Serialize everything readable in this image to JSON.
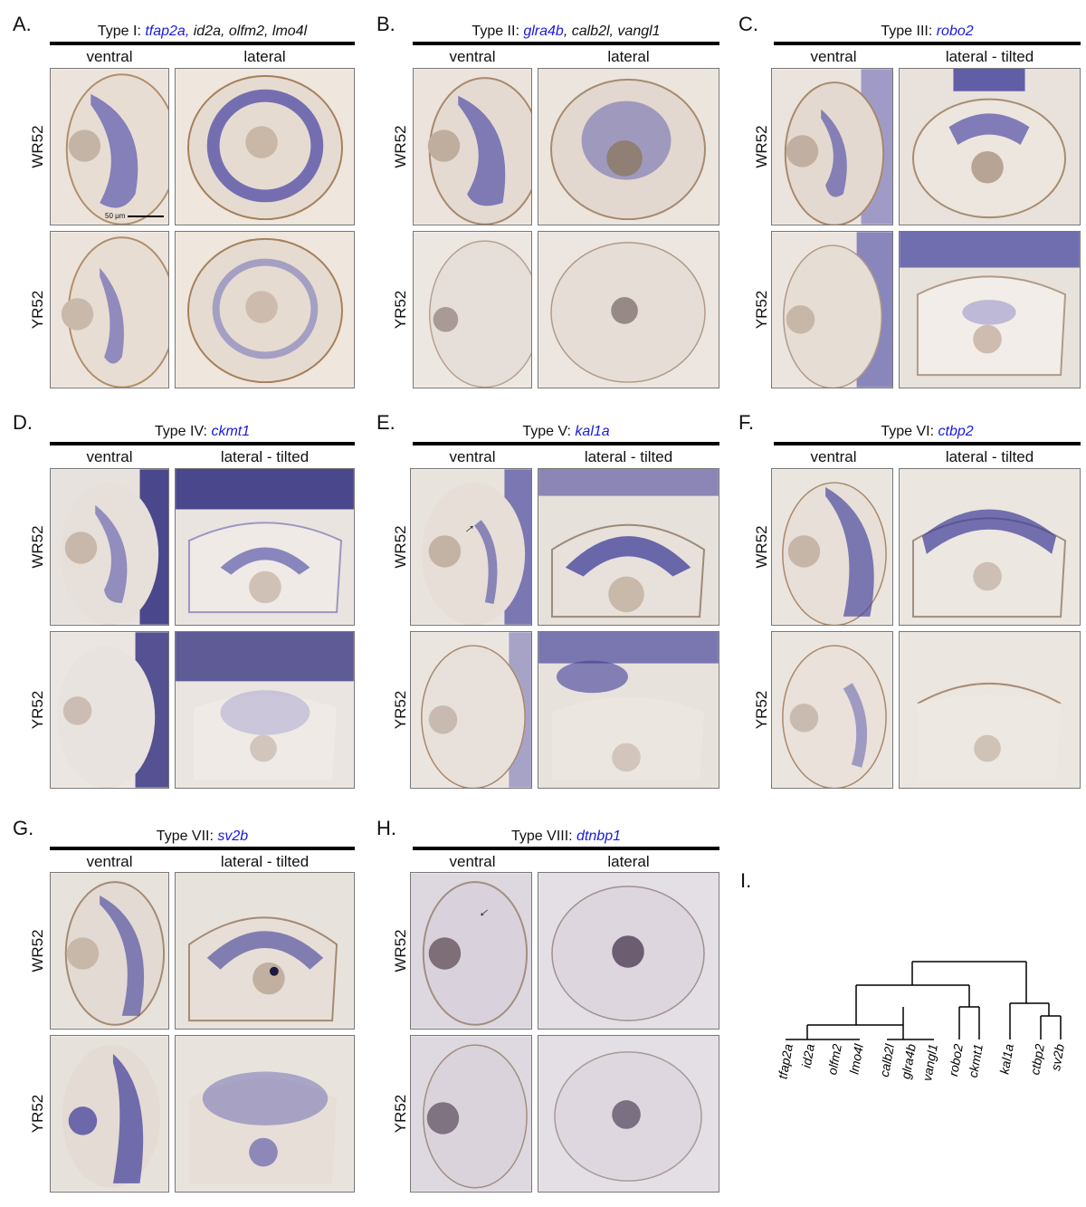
{
  "panels": [
    {
      "letter": "A.",
      "title_prefix": "Type I: ",
      "highlight": "tfap2a,",
      "rest": " id2a, olfm2, lmo4l",
      "col1": "ventral",
      "col2": "lateral",
      "row1": "WR52",
      "row2": "YR52"
    },
    {
      "letter": "B.",
      "title_prefix": "Type II: ",
      "highlight": "glra4b",
      "rest": ", calb2l, vangl1",
      "col1": "ventral",
      "col2": "lateral",
      "row1": "WR52",
      "row2": "YR52"
    },
    {
      "letter": "C.",
      "title_prefix": "Type III: ",
      "highlight": "robo2",
      "rest": "",
      "col1": "ventral",
      "col2": "lateral - tilted",
      "row1": "WR52",
      "row2": "YR52"
    },
    {
      "letter": "D.",
      "title_prefix": "Type IV: ",
      "highlight": "ckmt1",
      "rest": "",
      "col1": "ventral",
      "col2": "lateral - tilted",
      "row1": "WR52",
      "row2": "YR52"
    },
    {
      "letter": "E.",
      "title_prefix": "Type V: ",
      "highlight": "kal1a",
      "rest": "",
      "col1": "ventral",
      "col2": "lateral - tilted",
      "row1": "WR52",
      "row2": "YR52"
    },
    {
      "letter": "F.",
      "title_prefix": "Type VI: ",
      "highlight": "ctbp2",
      "rest": "",
      "col1": "ventral",
      "col2": "lateral - tilted",
      "row1": "WR52",
      "row2": "YR52"
    },
    {
      "letter": "G.",
      "title_prefix": "Type VII: ",
      "highlight": "sv2b",
      "rest": "",
      "col1": "ventral",
      "col2": "lateral - tilted",
      "row1": "WR52",
      "row2": "YR52"
    },
    {
      "letter": "H.",
      "title_prefix": "Type VIII: ",
      "highlight": "dtnbp1",
      "rest": "",
      "col1": "ventral",
      "col2": "lateral",
      "row1": "WR52",
      "row2": "YR52"
    }
  ],
  "scale_bar": "50 μm",
  "dendrogram": {
    "letter": "I.",
    "leaves": [
      "tfap2a",
      "id2a",
      "olfm2",
      "lmo4l",
      "calb2l",
      "glra4b",
      "vangl1",
      "robo2",
      "ckmt1",
      "kal1a",
      "ctbp2",
      "sv2b"
    ]
  }
}
